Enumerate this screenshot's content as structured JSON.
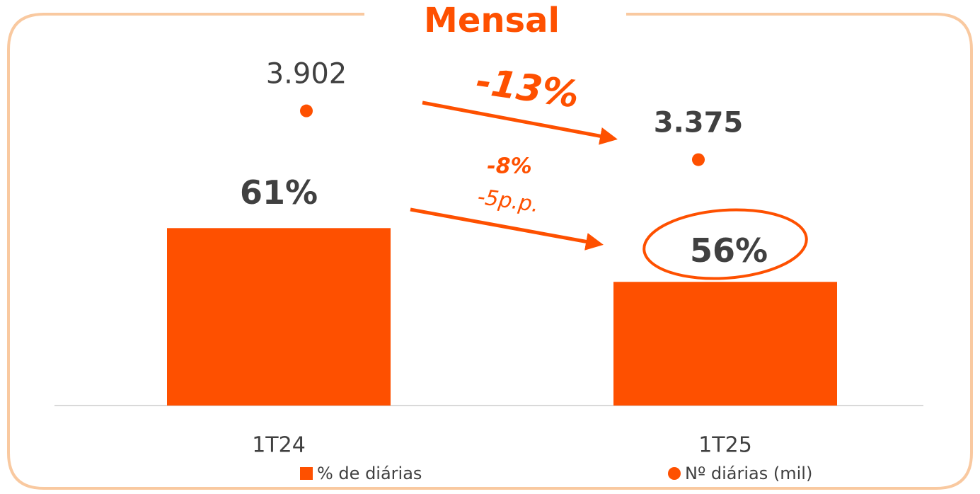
{
  "chart_data": {
    "type": "bar-dot",
    "title": "Mensal",
    "categories": [
      "1T24",
      "1T25"
    ],
    "series": [
      {
        "name": "% de diárias",
        "type": "bar",
        "color": "#fe5000",
        "values": [
          61,
          56
        ],
        "value_labels": [
          "61%",
          "56%"
        ]
      },
      {
        "name": "Nº diárias (mil)",
        "type": "dot",
        "axis": "y2",
        "color": "#fe5000",
        "values": [
          3902,
          3375
        ],
        "value_labels": [
          "3.902",
          "3.375"
        ]
      }
    ],
    "ylim": [
      44.5,
      78
    ],
    "y2lim": [
      720,
      4610
    ],
    "annotations": [
      "-13%",
      "-8%",
      "-5p.p."
    ],
    "legend": "bottom"
  }
}
